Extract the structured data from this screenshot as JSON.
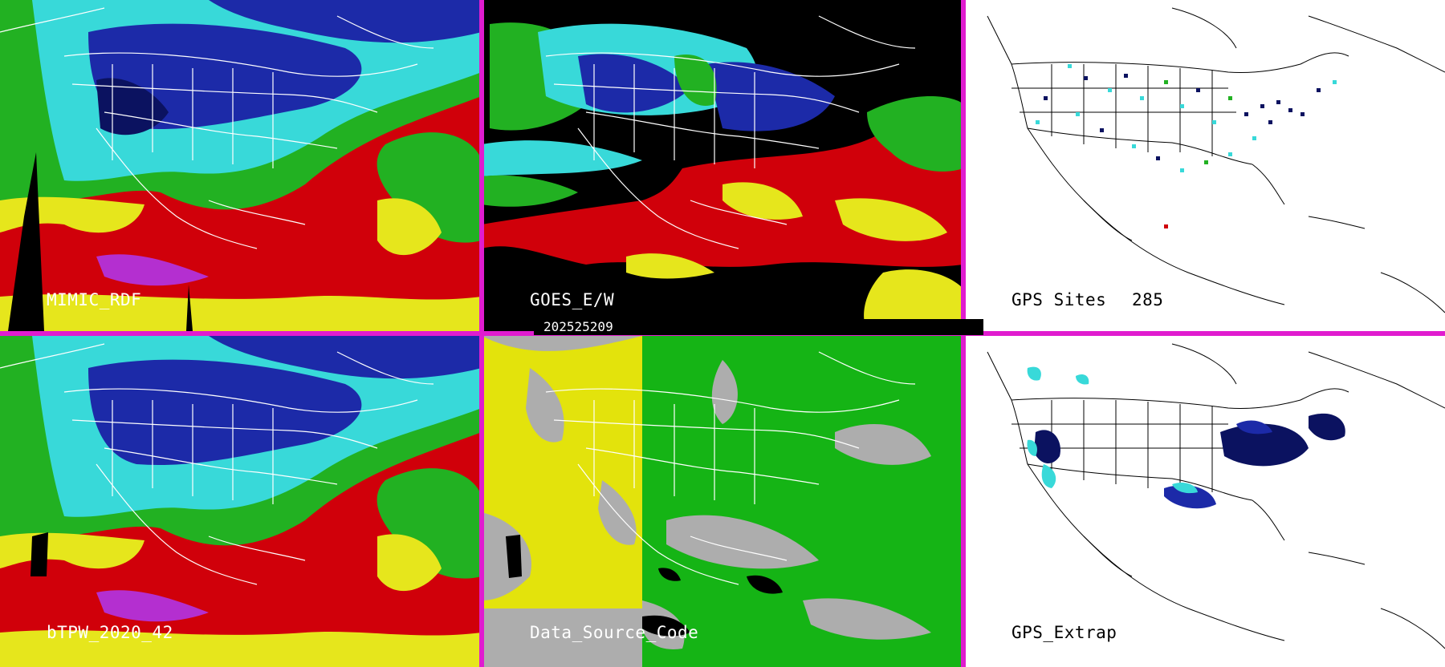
{
  "panels": {
    "mimic_rdf": {
      "label": "MIMIC_RDF"
    },
    "goes_ew": {
      "label": "GOES_E/W"
    },
    "gps_sites": {
      "label": "GPS Sites",
      "count": "285"
    },
    "btpw": {
      "label": "bTPW_2020_42"
    },
    "data_source_code": {
      "label": "Data_Source_Code"
    },
    "gps_extrap": {
      "label": "GPS_Extrap"
    }
  },
  "timestamp": "202525209",
  "colors": {
    "separator": "#e01ccf",
    "tpw_red": "#d0000a",
    "tpw_yellow": "#e6e61c",
    "tpw_green": "#22b122",
    "tpw_cyan": "#38d9d9",
    "tpw_blue": "#1c2aa8",
    "tpw_navy": "#0b1260",
    "tpw_magenta": "#b42fd0",
    "source_yellow": "#e3e30c",
    "source_green": "#15b415",
    "source_gray": "#adadad"
  }
}
